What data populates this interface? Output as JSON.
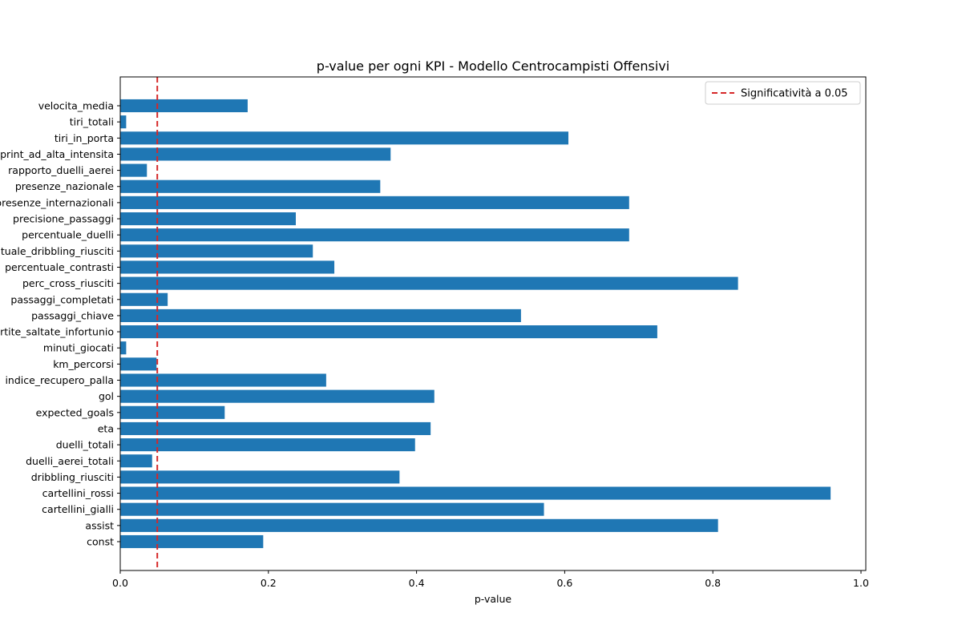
{
  "chart_data": {
    "type": "bar",
    "orientation": "horizontal",
    "title": "p-value per ogni KPI - Modello Centrocampisti Offensivi",
    "xlabel": "p-value",
    "ylabel": "",
    "xlim": [
      0.0,
      1.0
    ],
    "xticks": [
      "0.0",
      "0.2",
      "0.4",
      "0.6",
      "0.8",
      "1.0"
    ],
    "categories": [
      "velocita_media",
      "tiri_totali",
      "tiri_in_porta",
      "sprint_ad_alta_intensita",
      "rapporto_duelli_aerei",
      "presenze_nazionale",
      "presenze_internazionali",
      "precisione_passaggi",
      "percentuale_duelli",
      "percentuale_dribbling_riusciti",
      "percentuale_contrasti",
      "perc_cross_riusciti",
      "passaggi_completati",
      "passaggi_chiave",
      "partite_saltate_infortunio",
      "minuti_giocati",
      "km_percorsi",
      "indice_recupero_palla",
      "gol",
      "expected_goals",
      "eta",
      "duelli_totali",
      "duelli_aerei_totali",
      "dribbling_riusciti",
      "cartellini_rossi",
      "cartellini_gialli",
      "assist",
      "const"
    ],
    "values": [
      0.172,
      0.008,
      0.605,
      0.365,
      0.036,
      0.351,
      0.687,
      0.237,
      0.687,
      0.26,
      0.289,
      0.834,
      0.064,
      0.541,
      0.725,
      0.008,
      0.049,
      0.278,
      0.424,
      0.141,
      0.419,
      0.398,
      0.043,
      0.377,
      0.959,
      0.572,
      0.807,
      0.193
    ],
    "bar_color": "#1f77b4",
    "threshold": {
      "value": 0.05,
      "label": "Significatività a 0.05",
      "color": "#d62728",
      "style": "dashed"
    },
    "legend_position": "top-right",
    "grid": false
  }
}
